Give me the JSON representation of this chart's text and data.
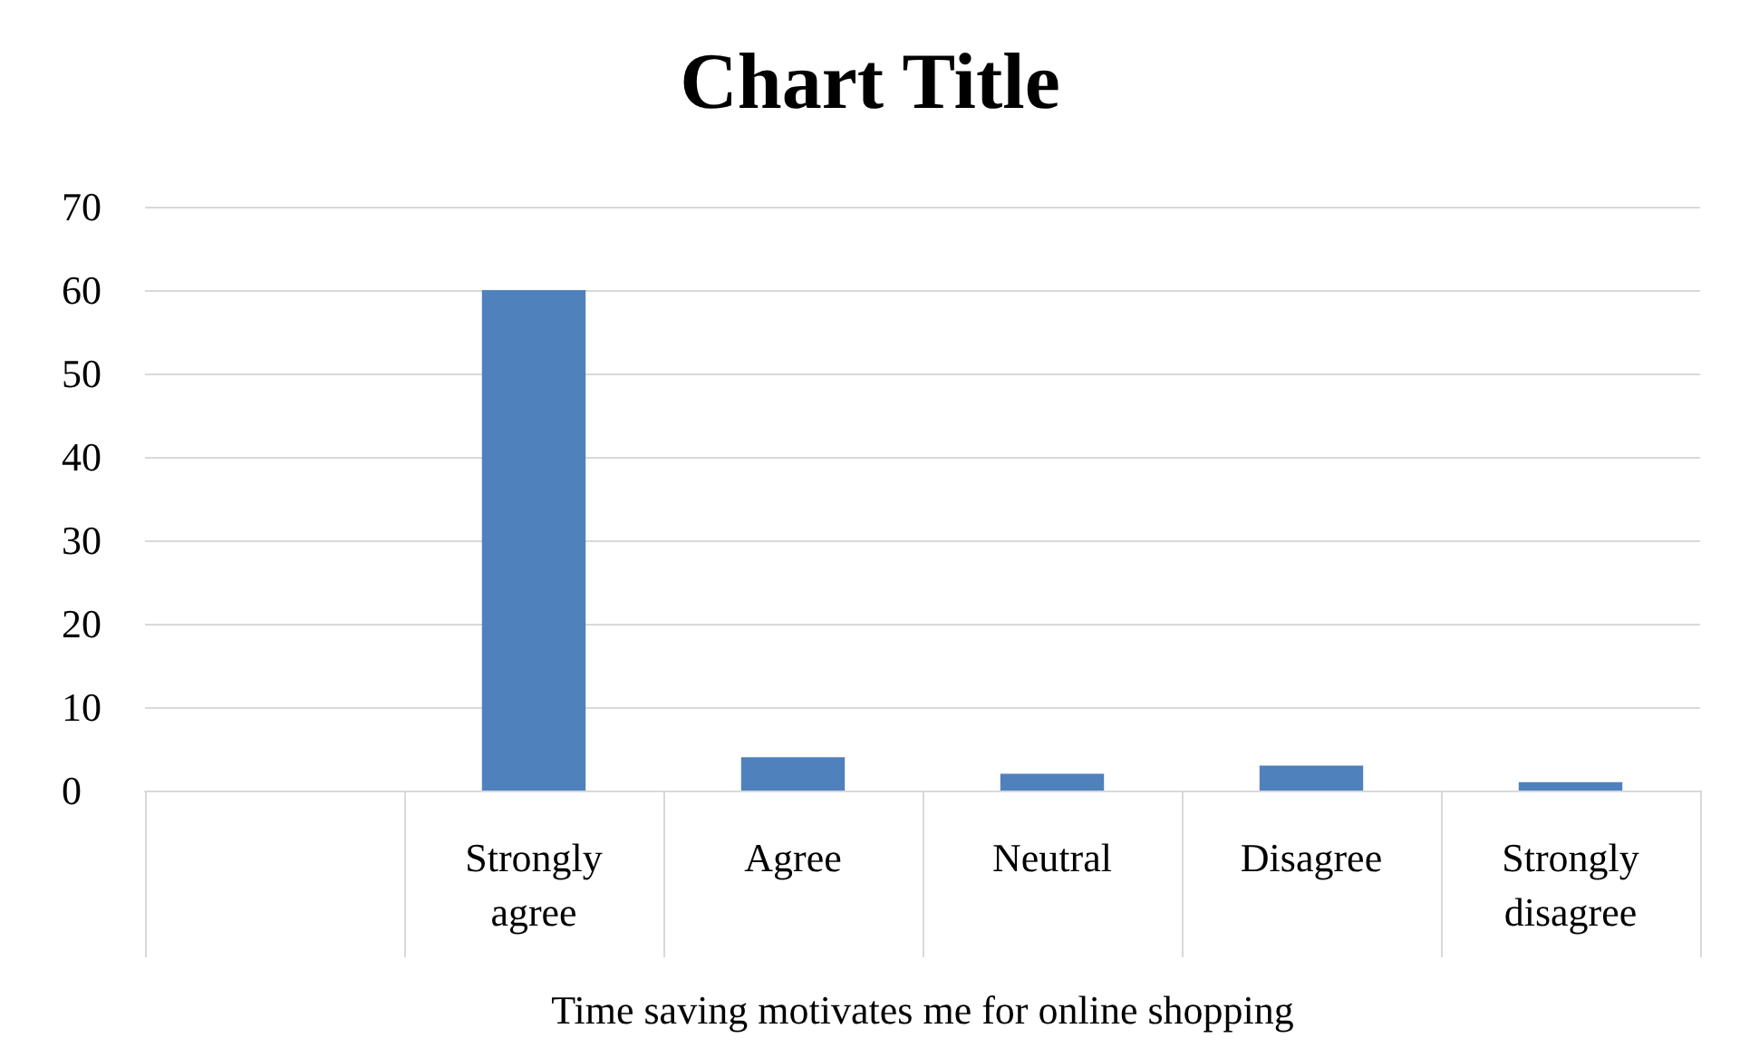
{
  "chart_data": {
    "type": "bar",
    "title": "Chart Title",
    "xlabel": "Time saving motivates me for online shopping",
    "categories": [
      null,
      "Strongly\nagree",
      "Agree",
      "Neutral",
      "Disagree",
      "Strongly\ndisagree"
    ],
    "values": [
      null,
      60,
      4,
      2,
      3,
      1
    ],
    "color": "#4f81bd",
    "ylim": [
      0,
      70
    ],
    "yticks": [
      0,
      10,
      20,
      30,
      40,
      50,
      60,
      70
    ],
    "grid": "y"
  }
}
